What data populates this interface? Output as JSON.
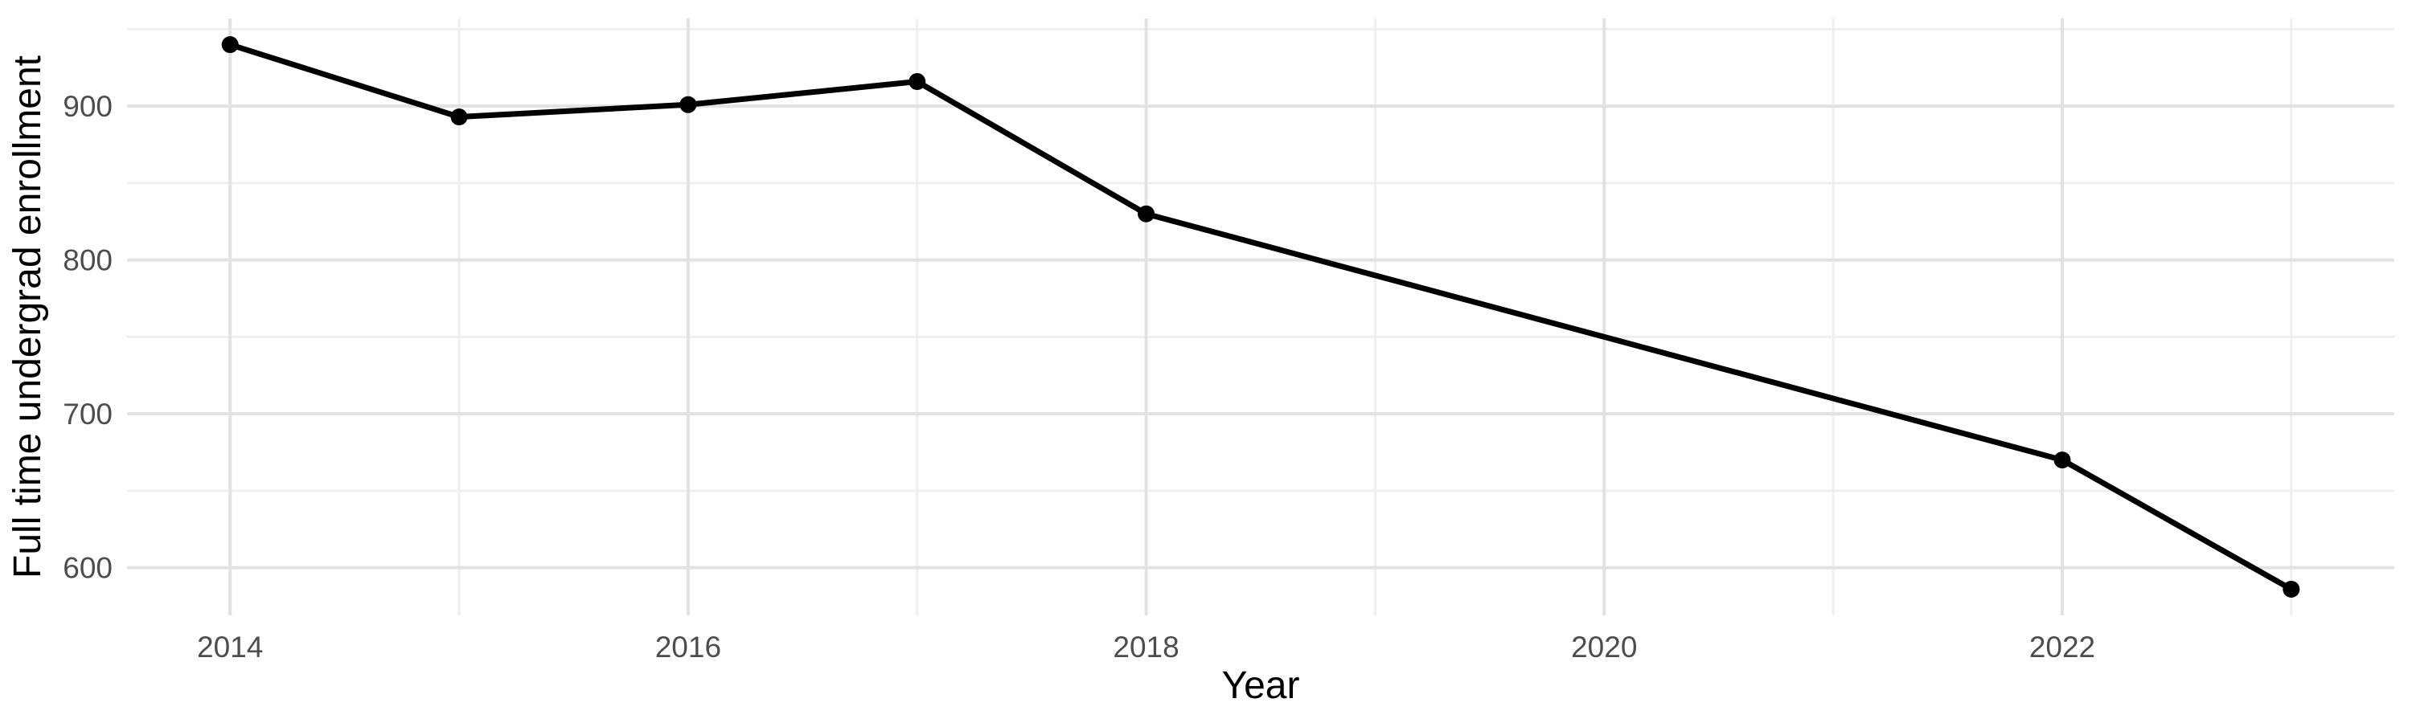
{
  "chart_data": {
    "type": "line",
    "title": "",
    "xlabel": "Year",
    "ylabel": "Full time undergrad enrollment",
    "x": [
      2014,
      2015,
      2016,
      2017,
      2018,
      2022,
      2023
    ],
    "values": [
      940,
      893,
      901,
      916,
      830,
      670,
      586
    ],
    "series_name": "Full time undergrad enrollment",
    "x_ticks_major": [
      2014,
      2016,
      2018,
      2020,
      2022
    ],
    "x_ticks_minor": [
      2015,
      2017,
      2019,
      2021,
      2023
    ],
    "y_ticks_major": [
      600,
      700,
      800,
      900
    ],
    "y_ticks_minor": [
      650,
      750,
      850,
      950
    ],
    "xlim": [
      2013.55,
      2023.45
    ],
    "ylim": [
      569,
      957
    ],
    "grid": "on",
    "legend": "none",
    "colors": {
      "line": "#000000",
      "point": "#000000",
      "grid_major": "#E2E2E2",
      "grid_minor": "#EFEFEF",
      "tick_label": "#4D4D4D",
      "axis_title": "#000000",
      "background": "#FFFFFF"
    }
  }
}
